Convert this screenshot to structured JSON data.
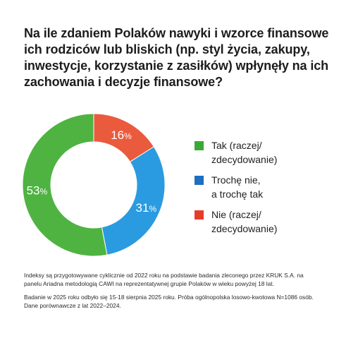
{
  "title_lines": [
    "Na ile zdaniem Polaków nawyki i wzorce finansowe",
    "ich rodziców lub bliskich (np. styl życia, zakupy,",
    "inwestycje, korzystanie z zasiłków) wpłynęły na ich",
    "zachowania i decyzje finansowe?"
  ],
  "chart_data": {
    "type": "pie",
    "variant": "donut",
    "unit": "%",
    "slices": [
      {
        "name": "Tak (raczej/\nzdecydowanie)",
        "value": 53,
        "label": "53",
        "color": "#4fb342"
      },
      {
        "name": "Trochę nie,\na trochę tak",
        "value": 31,
        "label": "31",
        "color": "#2a9be0"
      },
      {
        "name": "Nie (raczej/\nzdecydowanie)",
        "value": 16,
        "label": "16",
        "color": "#ea5a3d"
      }
    ],
    "legend_placement": "right"
  },
  "legend_colors": [
    "#3aa935",
    "#1d6fc1",
    "#e63c2a"
  ],
  "notes": [
    "Indeksy są przygotowywane cyklicznie od 2022 roku na podstawie badania zleconego przez KRUK S.A. na panelu Ariadna metodologią CAWI na reprezentatywnej grupie Polaków w wieku powyżej 18 lat.",
    "Badanie w 2025 roku odbyło się 15-18 sierpnia 2025 roku. Próba ogólnopolska losowo-kwotowa N=1086 osób. Dane porównawcze z lat 2022–2024."
  ]
}
